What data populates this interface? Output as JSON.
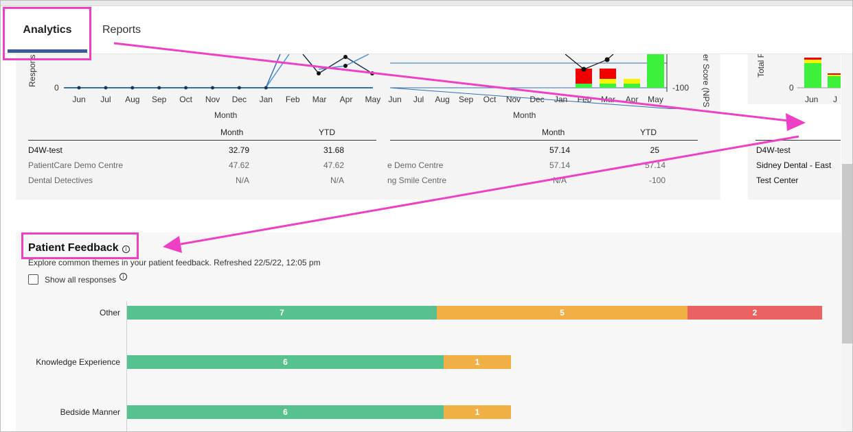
{
  "tabs": {
    "analytics": "Analytics",
    "reports": "Reports"
  },
  "panel_a": {
    "y_axis_label": "Respons",
    "y_tick_zero": "0",
    "months": [
      "Jun",
      "Jul",
      "Aug",
      "Sep",
      "Oct",
      "Nov",
      "Dec",
      "Jan",
      "Feb",
      "Mar",
      "Apr",
      "May"
    ],
    "x_axis_title": "Month",
    "table": {
      "col_month": "Month",
      "col_ytd": "YTD",
      "rows": [
        {
          "name": "D4W-test",
          "month": "32.79",
          "ytd": "31.68"
        },
        {
          "name": "PatientCare Demo Centre",
          "month": "47.62",
          "ytd": "47.62"
        },
        {
          "name": "Dental Detectives",
          "month": "N/A",
          "ytd": "N/A"
        }
      ]
    }
  },
  "panel_b": {
    "y_axis_label": "er Score (NPS",
    "y_tick_neg100": "-100",
    "months": [
      "Jun",
      "Jul",
      "Aug",
      "Sep",
      "Oct",
      "Nov",
      "Dec",
      "Jan",
      "Feb",
      "Mar",
      "Apr",
      "May"
    ],
    "x_axis_title": "Month",
    "table": {
      "col_month": "Month",
      "col_ytd": "YTD",
      "rows": [
        {
          "name": "",
          "month": "57.14",
          "ytd": "25"
        },
        {
          "name": "e Demo Centre",
          "month": "57.14",
          "ytd": "57.14"
        },
        {
          "name": "ng Smile Centre",
          "month": "N/A",
          "ytd": "-100"
        }
      ]
    }
  },
  "panel_c": {
    "y_axis_label": "Total F",
    "y_tick_zero": "0",
    "months": [
      "Jun",
      "J"
    ],
    "rows": [
      "D4W-test",
      "Sidney Dental - East",
      "Test Center"
    ]
  },
  "feedback": {
    "title": "Patient Feedback",
    "info_glyph": "i",
    "subtitle": "Explore common themes in your patient feedback. Refreshed 22/5/22, 12:05 pm",
    "show_all_label": "Show all responses",
    "colors": {
      "positive": "#57c28f",
      "neutral": "#f1b046",
      "negative": "#eb6262"
    },
    "rows": [
      {
        "label": "Other",
        "positive": "7",
        "neutral": "5",
        "negative": "2"
      },
      {
        "label": "Knowledge Experience",
        "positive": "6",
        "neutral": "1"
      },
      {
        "label": "Bedside Manner",
        "positive": "6",
        "neutral": "1"
      }
    ]
  },
  "chart_data": [
    {
      "type": "line",
      "x": [
        "Jun",
        "Jul",
        "Aug",
        "Sep",
        "Oct",
        "Nov",
        "Dec",
        "Jan",
        "Feb",
        "Mar",
        "Apr",
        "May"
      ],
      "y_axis_label": "Respons",
      "series": [
        {
          "values": [
            0,
            0,
            0,
            0,
            0,
            0,
            0,
            0,
            null,
            null,
            null,
            null
          ]
        }
      ]
    },
    {
      "type": "bar",
      "x": [
        "Jun",
        "Jul",
        "Aug",
        "Sep",
        "Oct",
        "Nov",
        "Dec",
        "Jan",
        "Feb",
        "Mar",
        "Apr",
        "May"
      ],
      "y_axis_label": "er Score (NPS",
      "colors": {
        "detractor": "#f20000",
        "passive": "#f5f500",
        "promoter": "#3cf03c"
      }
    },
    {
      "type": "bar",
      "x": [
        "Jun",
        "J"
      ],
      "y_axis_label": "Total F"
    }
  ]
}
